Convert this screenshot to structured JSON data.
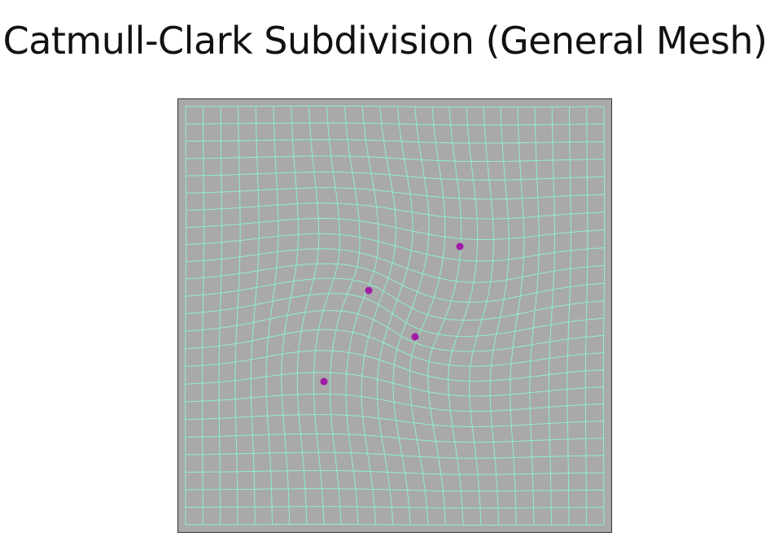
{
  "slide": {
    "title": "Catmull-Clark Subdivision (General Mesh)"
  },
  "figure": {
    "kind": "subdivided quad mesh with extraordinary vertices",
    "colors": {
      "background": "#a9a9a9",
      "border": "#333333",
      "mesh_line": "#8ff0c8",
      "extraordinary_vertex": "#a01ca6"
    },
    "grid_cells": 24,
    "extraordinary_vertex_count": 4
  }
}
